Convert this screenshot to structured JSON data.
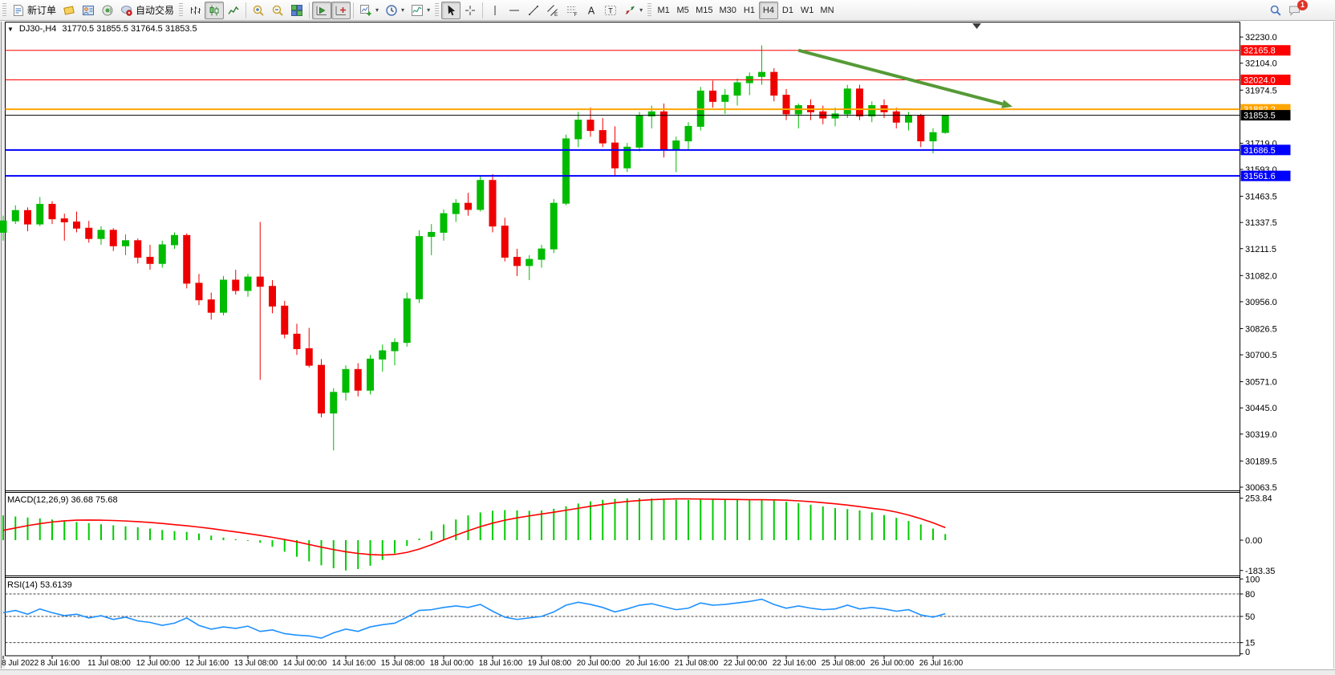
{
  "toolbar": {
    "groups": [
      {
        "kind": "band",
        "name": "trade",
        "items": [
          {
            "name": "new-order-button",
            "icon": "new-order-icon",
            "label": "新订单"
          },
          {
            "name": "quotes-button",
            "icon": "quotes-icon"
          },
          {
            "name": "data-window-button",
            "icon": "data-window-icon"
          },
          {
            "name": "sounds-button",
            "icon": "sounds-icon"
          },
          {
            "name": "autotrading-button",
            "icon": "autotrading-icon",
            "label": "自动交易"
          }
        ]
      },
      {
        "kind": "band",
        "name": "chart-type",
        "items": [
          {
            "name": "bar-chart-button",
            "icon": "bar-chart-icon"
          },
          {
            "name": "candlestick-button",
            "icon": "candlestick-icon",
            "active": true
          },
          {
            "name": "line-chart-button",
            "icon": "line-chart-icon"
          }
        ]
      },
      {
        "kind": "sep",
        "name": "zoom",
        "items": [
          {
            "name": "zoom-in-button",
            "icon": "zoom-in-icon"
          },
          {
            "name": "zoom-out-button",
            "icon": "zoom-out-icon"
          },
          {
            "name": "tile-windows-button",
            "icon": "tile-windows-icon"
          }
        ]
      },
      {
        "kind": "sep",
        "name": "scroll",
        "items": [
          {
            "name": "auto-scroll-button",
            "icon": "auto-scroll-icon",
            "active": true
          },
          {
            "name": "chart-shift-button",
            "icon": "chart-shift-icon",
            "active": true
          }
        ]
      },
      {
        "kind": "sep",
        "name": "objects",
        "items": [
          {
            "name": "new-chart-button",
            "icon": "new-chart-icon",
            "dropdown": true
          },
          {
            "name": "periods-button",
            "icon": "period-icon",
            "dropdown": true
          },
          {
            "name": "indicators-button",
            "icon": "indicators-icon",
            "dropdown": true
          }
        ]
      },
      {
        "kind": "band",
        "name": "pointer",
        "items": [
          {
            "name": "cursor-button",
            "icon": "cursor-icon",
            "active": true
          },
          {
            "name": "crosshair-button",
            "icon": "crosshair-icon"
          }
        ]
      },
      {
        "kind": "sep",
        "name": "draw",
        "items": [
          {
            "name": "vertical-line-button",
            "icon": "vline-icon"
          },
          {
            "name": "horizontal-line-button",
            "icon": "hline-icon"
          },
          {
            "name": "trendline-button",
            "icon": "trendline-icon"
          },
          {
            "name": "equidistant-channel-button",
            "icon": "channel-icon"
          },
          {
            "name": "fibonacci-button",
            "icon": "fibo-icon"
          },
          {
            "name": "text-button",
            "icon": "text-icon"
          },
          {
            "name": "text-label-button",
            "icon": "label-icon"
          },
          {
            "name": "arrows-button",
            "icon": "arrows-icon",
            "dropdown": true
          }
        ]
      },
      {
        "kind": "band",
        "name": "timeframes",
        "items": [
          {
            "name": "timeframe-m1",
            "text": "M1"
          },
          {
            "name": "timeframe-m5",
            "text": "M5"
          },
          {
            "name": "timeframe-m15",
            "text": "M15"
          },
          {
            "name": "timeframe-m30",
            "text": "M30"
          },
          {
            "name": "timeframe-h1",
            "text": "H1"
          },
          {
            "name": "timeframe-h4",
            "text": "H4",
            "active": true
          },
          {
            "name": "timeframe-d1",
            "text": "D1"
          },
          {
            "name": "timeframe-w1",
            "text": "W1"
          },
          {
            "name": "timeframe-mn",
            "text": "MN"
          }
        ]
      },
      {
        "kind": "right",
        "name": "right",
        "items": [
          {
            "name": "search-button",
            "icon": "search-icon"
          },
          {
            "name": "notifications-button",
            "icon": "chat-icon",
            "badge": "1"
          }
        ]
      }
    ]
  },
  "chart": {
    "collapse_icon": "▼",
    "symbol_period": "DJ30-,H4",
    "ohlc": "31770.5 31855.5 31764.5 31853.5"
  },
  "chart_data": [
    {
      "type": "candlestick",
      "symbol": "DJ30-",
      "timeframe": "H4",
      "ylim": [
        30046,
        32300
      ],
      "y_ticks": [
        "32230.0",
        "32104.0",
        "31974.5",
        "31719.0",
        "31593.0",
        "31463.5",
        "31337.5",
        "31211.5",
        "31082.0",
        "30956.0",
        "30826.5",
        "30700.5",
        "30571.0",
        "30445.0",
        "30319.0",
        "30189.5",
        "30063.5"
      ],
      "up_color": "#00BB00",
      "down_color": "#EE0000",
      "bars": [
        [
          31290,
          31370,
          31250,
          31345
        ],
        [
          31345,
          31420,
          31330,
          31395
        ],
        [
          31395,
          31410,
          31295,
          31330
        ],
        [
          31330,
          31460,
          31320,
          31425
        ],
        [
          31425,
          31440,
          31330,
          31355
        ],
        [
          31355,
          31380,
          31250,
          31340
        ],
        [
          31340,
          31390,
          31290,
          31310
        ],
        [
          31310,
          31345,
          31240,
          31260
        ],
        [
          31260,
          31320,
          31230,
          31300
        ],
        [
          31300,
          31310,
          31200,
          31225
        ],
        [
          31225,
          31280,
          31180,
          31250
        ],
        [
          31250,
          31260,
          31140,
          31170
        ],
        [
          31170,
          31230,
          31110,
          31140
        ],
        [
          31140,
          31250,
          31120,
          31230
        ],
        [
          31230,
          31290,
          31210,
          31275
        ],
        [
          31275,
          31285,
          31020,
          31045
        ],
        [
          31045,
          31090,
          30940,
          30965
        ],
        [
          30965,
          31000,
          30870,
          30905
        ],
        [
          30905,
          31080,
          30890,
          31060
        ],
        [
          31060,
          31110,
          30990,
          31010
        ],
        [
          31010,
          31090,
          30980,
          31075
        ],
        [
          31075,
          31340,
          30580,
          31030
        ],
        [
          31030,
          31060,
          30900,
          30935
        ],
        [
          30935,
          30960,
          30780,
          30800
        ],
        [
          30800,
          30850,
          30700,
          30730
        ],
        [
          30730,
          30830,
          30640,
          30650
        ],
        [
          30650,
          30680,
          30400,
          30420
        ],
        [
          30420,
          30540,
          30240,
          30520
        ],
        [
          30520,
          30650,
          30480,
          30630
        ],
        [
          30630,
          30660,
          30500,
          30530
        ],
        [
          30530,
          30700,
          30510,
          30680
        ],
        [
          30680,
          30750,
          30620,
          30720
        ],
        [
          30720,
          30780,
          30650,
          30760
        ],
        [
          30760,
          31000,
          30740,
          30970
        ],
        [
          30970,
          31300,
          30950,
          31270
        ],
        [
          31270,
          31330,
          31180,
          31290
        ],
        [
          31290,
          31400,
          31250,
          31380
        ],
        [
          31380,
          31450,
          31340,
          31430
        ],
        [
          31430,
          31480,
          31370,
          31400
        ],
        [
          31400,
          31560,
          31390,
          31540
        ],
        [
          31540,
          31570,
          31290,
          31320
        ],
        [
          31320,
          31360,
          31150,
          31170
        ],
        [
          31170,
          31210,
          31080,
          31130
        ],
        [
          31130,
          31180,
          31060,
          31160
        ],
        [
          31160,
          31230,
          31120,
          31210
        ],
        [
          31210,
          31450,
          31190,
          31430
        ],
        [
          31430,
          31760,
          31420,
          31740
        ],
        [
          31740,
          31870,
          31700,
          31830
        ],
        [
          31830,
          31890,
          31750,
          31780
        ],
        [
          31780,
          31840,
          31700,
          31720
        ],
        [
          31720,
          31800,
          31560,
          31600
        ],
        [
          31600,
          31720,
          31580,
          31700
        ],
        [
          31700,
          31870,
          31680,
          31850
        ],
        [
          31850,
          31900,
          31790,
          31870
        ],
        [
          31870,
          31910,
          31650,
          31690
        ],
        [
          31690,
          31750,
          31580,
          31730
        ],
        [
          31730,
          31820,
          31690,
          31800
        ],
        [
          31800,
          31990,
          31780,
          31970
        ],
        [
          31970,
          32020,
          31890,
          31920
        ],
        [
          31920,
          31980,
          31860,
          31950
        ],
        [
          31950,
          32030,
          31900,
          32010
        ],
        [
          32010,
          32060,
          31950,
          32040
        ],
        [
          32040,
          32190,
          32000,
          32060
        ],
        [
          32060,
          32080,
          31920,
          31950
        ],
        [
          31950,
          31980,
          31830,
          31860
        ],
        [
          31860,
          31910,
          31790,
          31900
        ],
        [
          31900,
          31930,
          31830,
          31870
        ],
        [
          31870,
          31900,
          31810,
          31840
        ],
        [
          31840,
          31890,
          31800,
          31860
        ],
        [
          31860,
          32000,
          31840,
          31980
        ],
        [
          31980,
          32000,
          31830,
          31850
        ],
        [
          31850,
          31920,
          31820,
          31900
        ],
        [
          31900,
          31930,
          31840,
          31870
        ],
        [
          31870,
          31890,
          31790,
          31820
        ],
        [
          31820,
          31870,
          31780,
          31850
        ],
        [
          31850,
          31860,
          31700,
          31730
        ],
        [
          31730,
          31790,
          31670,
          31770
        ],
        [
          31770.5,
          31855.5,
          31764.5,
          31853.5
        ]
      ],
      "levels": [
        {
          "label": "32165.8",
          "price": 32165.8,
          "color": "#FF0000",
          "width": 1
        },
        {
          "label": "32024.0",
          "price": 32024.0,
          "color": "#FF0000",
          "width": 1
        },
        {
          "label": "31882.2",
          "price": 31882.2,
          "color": "#FFA500",
          "width": 2
        },
        {
          "label": "31686.5",
          "price": 31686.5,
          "color": "#0000FF",
          "width": 2
        },
        {
          "label": "31561.6",
          "price": 31561.6,
          "color": "#0000FF",
          "width": 2
        }
      ],
      "current_price": {
        "label": "31853.5",
        "price": 31853.5,
        "color": "#000000"
      },
      "trend_arrow": {
        "from_bar": 65,
        "from_price": 32166,
        "to_bar": 82.5,
        "to_price": 31895,
        "color": "#569A36",
        "width": 4
      },
      "x_labels": [
        "8 Jul 2022",
        "8 Jul 16:00",
        "11 Jul 08:00",
        "12 Jul 00:00",
        "12 Jul 16:00",
        "13 Jul 08:00",
        "14 Jul 00:00",
        "14 Jul 16:00",
        "15 Jul 08:00",
        "18 Jul 00:00",
        "18 Jul 16:00",
        "19 Jul 08:00",
        "20 Jul 00:00",
        "20 Jul 16:00",
        "21 Jul 08:00",
        "22 Jul 00:00",
        "22 Jul 16:00",
        "25 Jul 08:00",
        "26 Jul 00:00",
        "26 Jul 16:00"
      ],
      "x_label_step_bars": 4
    },
    {
      "type": "macd",
      "label": "MACD(12,26,9) 36.68 75.68",
      "ylim": [
        -216,
        289
      ],
      "y_ticks": [
        "253.84",
        "0.00",
        "-183.35"
      ],
      "hist_color": "#00CC00",
      "signal_color": "#FF0000",
      "histogram": [
        150,
        143,
        137,
        132,
        125,
        117,
        110,
        103,
        96,
        90,
        84,
        78,
        70,
        62,
        55,
        50,
        40,
        28,
        16,
        6,
        -4,
        -16,
        -40,
        -70,
        -100,
        -128,
        -152,
        -170,
        -183,
        -175,
        -155,
        -120,
        -80,
        -35,
        10,
        55,
        95,
        125,
        150,
        168,
        178,
        182,
        180,
        178,
        180,
        190,
        205,
        222,
        235,
        244,
        250,
        253,
        254,
        252,
        248,
        244,
        243,
        245,
        247,
        246,
        244,
        243,
        244,
        240,
        232,
        224,
        214,
        204,
        194,
        188,
        180,
        168,
        152,
        135,
        116,
        95,
        70,
        37
      ],
      "signal": [
        60,
        74,
        88,
        100,
        110,
        117,
        121,
        122,
        121,
        119,
        116,
        112,
        107,
        101,
        94,
        87,
        79,
        70,
        60,
        50,
        40,
        29,
        17,
        4,
        -10,
        -26,
        -42,
        -57,
        -70,
        -80,
        -87,
        -90,
        -86,
        -74,
        -54,
        -28,
        2,
        30,
        57,
        82,
        103,
        121,
        135,
        147,
        158,
        169,
        181,
        193,
        205,
        216,
        226,
        234,
        240,
        245,
        248,
        250,
        250,
        249,
        248,
        247,
        246,
        245,
        245,
        244,
        242,
        238,
        233,
        227,
        220,
        212,
        203,
        193,
        184,
        170,
        152,
        130,
        105,
        76
      ]
    },
    {
      "type": "rsi",
      "label": "RSI(14) 53.6139",
      "ylim": [
        -2.5,
        102
      ],
      "y_ticks": [
        "100",
        "80",
        "50",
        "15",
        "0"
      ],
      "levels": [
        80,
        50,
        15
      ],
      "color": "#1E90FF",
      "values": [
        55,
        58,
        53,
        60,
        55,
        51,
        53,
        48,
        51,
        46,
        49,
        44,
        42,
        38,
        41,
        48,
        38,
        33,
        36,
        34,
        37,
        30,
        32,
        27,
        25,
        24,
        21,
        28,
        33,
        30,
        36,
        39,
        41,
        49,
        58,
        59,
        62,
        64,
        62,
        66,
        57,
        49,
        46,
        48,
        50,
        56,
        65,
        69,
        66,
        62,
        56,
        60,
        65,
        67,
        63,
        59,
        61,
        68,
        65,
        66,
        68,
        70,
        73,
        66,
        61,
        64,
        61,
        59,
        60,
        65,
        60,
        62,
        60,
        57,
        59,
        52,
        49,
        53.6
      ]
    }
  ]
}
